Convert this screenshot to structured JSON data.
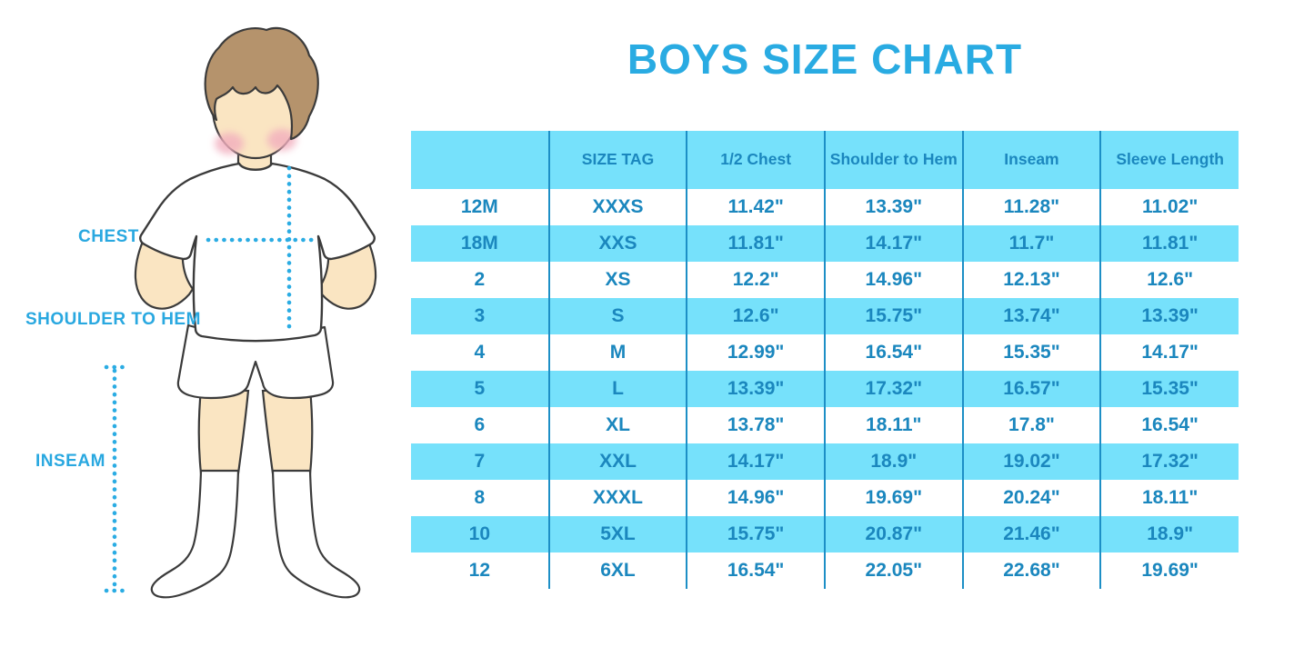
{
  "title": "BOYS SIZE CHART",
  "figure_labels": {
    "chest": "CHEST",
    "shoulder_to_hem": "SHOULDER TO HEM",
    "inseam": "INSEAM"
  },
  "colors": {
    "title_blue": "#29ABE2",
    "label_blue": "#29A8E0",
    "row_stripe_blue": "#76E1FB",
    "cell_text_blue": "#1B87BE",
    "column_line_blue": "#1D8FC6",
    "dotted_line_blue": "#2BACE3"
  },
  "chart_data": {
    "type": "table",
    "title": "BOYS SIZE CHART",
    "columns": [
      "",
      "SIZE TAG",
      "1/2 Chest",
      "Shoulder to Hem",
      "Inseam",
      "Sleeve Length"
    ],
    "rows": [
      [
        "12M",
        "XXXS",
        "11.42\"",
        "13.39\"",
        "11.28\"",
        "11.02\""
      ],
      [
        "18M",
        "XXS",
        "11.81\"",
        "14.17\"",
        "11.7\"",
        "11.81\""
      ],
      [
        "2",
        "XS",
        "12.2\"",
        "14.96\"",
        "12.13\"",
        "12.6\""
      ],
      [
        "3",
        "S",
        "12.6\"",
        "15.75\"",
        "13.74\"",
        "13.39\""
      ],
      [
        "4",
        "M",
        "12.99\"",
        "16.54\"",
        "15.35\"",
        "14.17\""
      ],
      [
        "5",
        "L",
        "13.39\"",
        "17.32\"",
        "16.57\"",
        "15.35\""
      ],
      [
        "6",
        "XL",
        "13.78\"",
        "18.11\"",
        "17.8\"",
        "16.54\""
      ],
      [
        "7",
        "XXL",
        "14.17\"",
        "18.9\"",
        "19.02\"",
        "17.32\""
      ],
      [
        "8",
        "XXXL",
        "14.96\"",
        "19.69\"",
        "20.24\"",
        "18.11\""
      ],
      [
        "10",
        "5XL",
        "15.75\"",
        "20.87\"",
        "21.46\"",
        "18.9\""
      ],
      [
        "12",
        "6XL",
        "16.54\"",
        "22.05\"",
        "22.68\"",
        "19.69\""
      ]
    ]
  }
}
